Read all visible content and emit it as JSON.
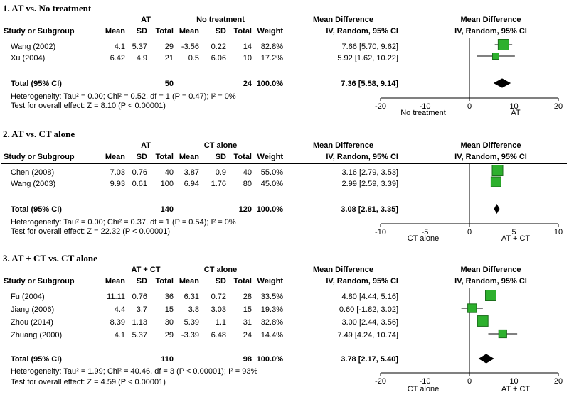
{
  "chart_data": [
    {
      "type": "forest",
      "title": "1. AT vs. No treatment",
      "group1": "AT",
      "group2": "No treatment",
      "columns": [
        "Study or Subgroup",
        "Mean",
        "SD",
        "Total",
        "Mean",
        "SD",
        "Total",
        "Weight",
        "IV, Random, 95% CI"
      ],
      "effect_header": "Mean Difference",
      "plot_header": "Mean Difference",
      "plot_subheader": "IV, Random, 95% CI",
      "studies": [
        {
          "name": "Wang (2002)",
          "m1": "4.1",
          "sd1": "5.37",
          "n1": "29",
          "m2": "-3.56",
          "sd2": "0.22",
          "n2": "14",
          "weight": "82.8%",
          "ci_text": "7.66 [5.70, 9.62]",
          "md": 7.66,
          "lo": 5.7,
          "hi": 9.62,
          "w": 82.8
        },
        {
          "name": "Xu (2004)",
          "m1": "6.42",
          "sd1": "4.9",
          "n1": "21",
          "m2": "0.5",
          "sd2": "6.06",
          "n2": "10",
          "weight": "17.2%",
          "ci_text": "5.92 [1.62, 10.22]",
          "md": 5.92,
          "lo": 1.62,
          "hi": 10.22,
          "w": 17.2
        }
      ],
      "total": {
        "label": "Total (95% CI)",
        "n1": "50",
        "n2": "24",
        "weight": "100.0%",
        "ci_text": "7.36 [5.58, 9.14]",
        "md": 7.36,
        "lo": 5.58,
        "hi": 9.14
      },
      "heterogeneity": "Heterogeneity: Tau² = 0.00; Chi² = 0.52, df = 1 (P = 0.47); I² = 0%",
      "overall": "Test for overall effect: Z = 8.10 (P < 0.00001)",
      "xlim": [
        -20,
        20
      ],
      "ticks": [
        "-20",
        "-10",
        "0",
        "10",
        "20"
      ],
      "favours_left": "No treatment",
      "favours_right": "AT"
    },
    {
      "type": "forest",
      "title": "2. AT vs. CT alone",
      "group1": "AT",
      "group2": "CT alone",
      "columns": [
        "Study or Subgroup",
        "Mean",
        "SD",
        "Total",
        "Mean",
        "SD",
        "Total",
        "Weight",
        "IV, Random, 95% CI"
      ],
      "effect_header": "Mean Difference",
      "plot_header": "Mean Difference",
      "plot_subheader": "IV, Random, 95% CI",
      "studies": [
        {
          "name": "Chen (2008)",
          "m1": "7.03",
          "sd1": "0.76",
          "n1": "40",
          "m2": "3.87",
          "sd2": "0.9",
          "n2": "40",
          "weight": "55.0%",
          "ci_text": "3.16 [2.79, 3.53]",
          "md": 3.16,
          "lo": 2.79,
          "hi": 3.53,
          "w": 55.0
        },
        {
          "name": "Wang (2003)",
          "m1": "9.93",
          "sd1": "0.61",
          "n1": "100",
          "m2": "6.94",
          "sd2": "1.76",
          "n2": "80",
          "weight": "45.0%",
          "ci_text": "2.99 [2.59, 3.39]",
          "md": 2.99,
          "lo": 2.59,
          "hi": 3.39,
          "w": 45.0
        }
      ],
      "total": {
        "label": "Total (95% CI)",
        "n1": "140",
        "n2": "120",
        "weight": "100.0%",
        "ci_text": "3.08 [2.81, 3.35]",
        "md": 3.08,
        "lo": 2.81,
        "hi": 3.35
      },
      "heterogeneity": "Heterogeneity: Tau² = 0.00; Chi² = 0.37, df = 1 (P = 0.54); I² = 0%",
      "overall": "Test for overall effect: Z = 22.32 (P < 0.00001)",
      "xlim": [
        -10,
        10
      ],
      "ticks": [
        "-10",
        "-5",
        "0",
        "5",
        "10"
      ],
      "favours_left": "CT alone",
      "favours_right": "AT + CT"
    },
    {
      "type": "forest",
      "title": "3. AT + CT vs. CT alone",
      "group1": "AT + CT",
      "group2": "CT alone",
      "columns": [
        "Study or Subgroup",
        "Mean",
        "SD",
        "Total",
        "Mean",
        "SD",
        "Total",
        "Weight",
        "IV, Random, 95% CI"
      ],
      "effect_header": "Mean Difference",
      "plot_header": "Mean Difference",
      "plot_subheader": "IV, Random, 95% CI",
      "studies": [
        {
          "name": "Fu (2004)",
          "m1": "11.11",
          "sd1": "0.76",
          "n1": "36",
          "m2": "6.31",
          "sd2": "0.72",
          "n2": "28",
          "weight": "33.5%",
          "ci_text": "4.80 [4.44, 5.16]",
          "md": 4.8,
          "lo": 4.44,
          "hi": 5.16,
          "w": 33.5
        },
        {
          "name": "Jiang (2006)",
          "m1": "4.4",
          "sd1": "3.7",
          "n1": "15",
          "m2": "3.8",
          "sd2": "3.03",
          "n2": "15",
          "weight": "19.3%",
          "ci_text": "0.60 [-1.82, 3.02]",
          "md": 0.6,
          "lo": -1.82,
          "hi": 3.02,
          "w": 19.3
        },
        {
          "name": "Zhou (2014)",
          "m1": "8.39",
          "sd1": "1.13",
          "n1": "30",
          "m2": "5.39",
          "sd2": "1.1",
          "n2": "31",
          "weight": "32.8%",
          "ci_text": "3.00 [2.44, 3.56]",
          "md": 3.0,
          "lo": 2.44,
          "hi": 3.56,
          "w": 32.8
        },
        {
          "name": "Zhuang (2000)",
          "m1": "4.1",
          "sd1": "5.37",
          "n1": "29",
          "m2": "-3.39",
          "sd2": "6.48",
          "n2": "24",
          "weight": "14.4%",
          "ci_text": "7.49 [4.24, 10.74]",
          "md": 7.49,
          "lo": 4.24,
          "hi": 10.74,
          "w": 14.4
        }
      ],
      "total": {
        "label": "Total (95% CI)",
        "n1": "110",
        "n2": "98",
        "weight": "100.0%",
        "ci_text": "3.78 [2.17, 5.40]",
        "md": 3.78,
        "lo": 2.17,
        "hi": 5.4
      },
      "heterogeneity": "Heterogeneity: Tau² = 1.99; Chi² = 40.46, df = 3 (P < 0.00001); I² = 93%",
      "overall": "Test for overall effect: Z = 4.59 (P < 0.00001)",
      "xlim": [
        -20,
        20
      ],
      "ticks": [
        "-20",
        "-10",
        "0",
        "10",
        "20"
      ],
      "favours_left": "CT alone",
      "favours_right": "AT + CT"
    }
  ],
  "colors": {
    "marker": "#2db02d",
    "marker_edge": "#1b6e1b",
    "line": "#000000"
  }
}
